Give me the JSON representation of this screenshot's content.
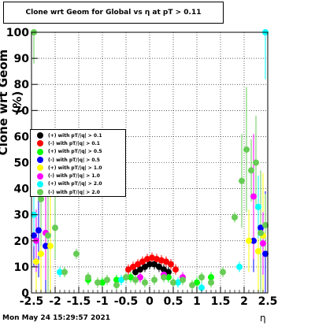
{
  "title": "Clone wrt Geom for Global vs   η at pT > 0.11",
  "timestamp": "Mon May 24 15:29:57 2021",
  "chart_data": {
    "type": "scatter",
    "xlabel": "η",
    "ylabel": "Clone wrt Geom (%)",
    "xlim": [
      -2.5,
      2.5
    ],
    "ylim": [
      0,
      100
    ],
    "xticks": [
      "-2.5",
      "-2",
      "-1.5",
      "-1",
      "-0.5",
      "0",
      "0.5",
      "1",
      "1.5",
      "2",
      "2.5"
    ],
    "yticks": [
      "0",
      "10",
      "20",
      "30",
      "40",
      "50",
      "60",
      "70",
      "80",
      "90",
      "100"
    ],
    "grid": true,
    "legend_position": "middle-left",
    "series": [
      {
        "name": "(+) with pT/|q| > 0.1",
        "color": "#000000",
        "x": [
          -0.3,
          -0.2,
          -0.1,
          0,
          0.1,
          0.2,
          0.3,
          0.4
        ],
        "y": [
          8,
          9,
          10,
          11,
          11,
          10,
          9,
          8
        ]
      },
      {
        "name": "(-) with pT/|q| > 0.1",
        "color": "#ff0000",
        "x": [
          -0.45,
          -0.35,
          -0.25,
          -0.15,
          -0.05,
          0.05,
          0.15,
          0.25,
          0.35,
          0.45,
          0.55
        ],
        "y": [
          9,
          10,
          11,
          12,
          13,
          13.5,
          13,
          12.5,
          12,
          11,
          9
        ]
      },
      {
        "name": "(+) with pT/|q| > 0.5",
        "color": "#00ff00",
        "x": [
          -1.3,
          -1.0,
          -0.7,
          -0.4,
          0.4,
          0.7,
          1.0,
          1.3
        ],
        "y": [
          5,
          4,
          5,
          6,
          6,
          5,
          4,
          6
        ]
      },
      {
        "name": "(-) with pT/|q| > 0.5",
        "color": "#0000ff",
        "x": [
          -2.45,
          -2.35,
          -2.2,
          2.2,
          2.35,
          2.45
        ],
        "y": [
          22,
          24,
          18,
          20,
          25,
          15
        ]
      },
      {
        "name": "(+) with pT/|q| > 1.0",
        "color": "#ffff00",
        "x": [
          -2.4,
          -2.3,
          -2.1,
          2.1,
          2.3,
          2.4
        ],
        "y": [
          12,
          15,
          18,
          20,
          16,
          22
        ]
      },
      {
        "name": "(-) with pT/|q| > 1.0",
        "color": "#ff00ff",
        "x": [
          -2.4,
          -2.2,
          -0.2,
          0.3,
          0.7,
          2.2,
          2.4
        ],
        "y": [
          20,
          23,
          6,
          7,
          6,
          37,
          19
        ]
      },
      {
        "name": "(+) with pT/|q| > 2.0",
        "color": "#00ffff",
        "x": [
          -2.45,
          -1.9,
          -0.6,
          0.6,
          1.1,
          1.9,
          2.3,
          2.45
        ],
        "y": [
          30,
          8,
          5,
          4,
          2,
          10,
          33,
          100
        ]
      },
      {
        "name": "(-) with pT/|q| > 2.0",
        "color": "#66cc55",
        "x": [
          -2.45,
          -2.3,
          -2.15,
          -2.0,
          -1.8,
          -1.55,
          -1.3,
          -1.1,
          -0.9,
          -0.7,
          -0.5,
          -0.3,
          -0.1,
          0.1,
          0.3,
          0.5,
          0.7,
          0.9,
          1.1,
          1.3,
          1.55,
          1.8,
          1.95,
          2.05,
          2.15,
          2.25,
          2.35,
          2.45
        ],
        "y": [
          100,
          36,
          22,
          25,
          8,
          15,
          6,
          4,
          5,
          3,
          6,
          5,
          4,
          5,
          6,
          4,
          5,
          3,
          6,
          4,
          8,
          29,
          43,
          55,
          47,
          50,
          23,
          26
        ]
      }
    ]
  }
}
